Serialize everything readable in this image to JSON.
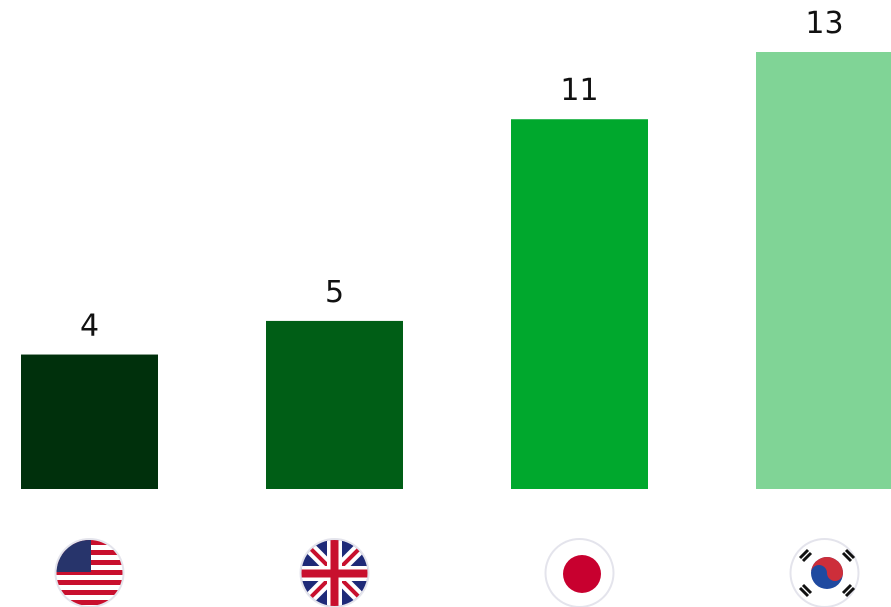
{
  "chart_data": {
    "type": "bar",
    "values": [
      4,
      5,
      11,
      13
    ],
    "colors": [
      "#00300c",
      "#005e16",
      "#00a82d",
      "#80d496"
    ]
  }
}
